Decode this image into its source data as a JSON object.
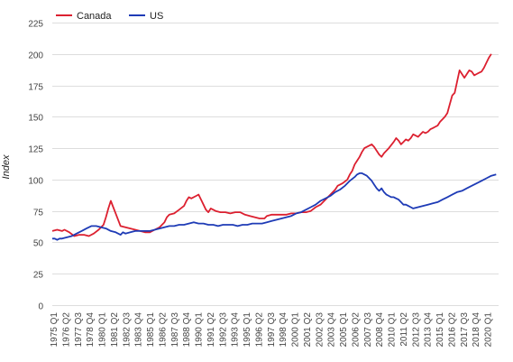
{
  "chart_data": {
    "type": "line",
    "title": "",
    "xlabel": "",
    "ylabel": "Index",
    "ylim": [
      0,
      225
    ],
    "y_ticks": [
      0,
      25,
      50,
      75,
      100,
      125,
      150,
      175,
      200,
      225
    ],
    "grid": true,
    "legend_position": "top-left",
    "x_tick_labels": [
      "1975 Q1",
      "1976 Q2",
      "1977 Q3",
      "1978 Q4",
      "1980 Q1",
      "1981 Q2",
      "1982 Q3",
      "1983 Q4",
      "1985 Q1",
      "1986 Q2",
      "1987 Q3",
      "1988 Q4",
      "1990 Q1",
      "1991 Q2",
      "1992 Q3",
      "1993 Q4",
      "1995 Q1",
      "1996 Q2",
      "1997 Q3",
      "1998 Q4",
      "2000 Q1",
      "2001 Q2",
      "2002 Q3",
      "2003 Q4",
      "2005 Q1",
      "2006 Q2",
      "2007 Q3",
      "2008 Q4",
      "2010 Q1",
      "2011 Q2",
      "2012 Q3",
      "2013 Q4",
      "2015 Q1",
      "2016 Q2",
      "2017 Q3",
      "2018 Q4",
      "2020 Q1"
    ],
    "x_start_year": 1975,
    "x_end_year": 2020.75,
    "series": [
      {
        "name": "Canada",
        "color": "#dc2030",
        "points": [
          [
            1975.0,
            59
          ],
          [
            1975.5,
            60
          ],
          [
            1976.0,
            59
          ],
          [
            1976.25,
            60
          ],
          [
            1976.75,
            58
          ],
          [
            1977.25,
            55
          ],
          [
            1977.75,
            56
          ],
          [
            1978.25,
            56
          ],
          [
            1978.75,
            55
          ],
          [
            1979.25,
            57
          ],
          [
            1979.75,
            60
          ],
          [
            1980.25,
            64
          ],
          [
            1980.5,
            70
          ],
          [
            1980.75,
            77
          ],
          [
            1981.0,
            83
          ],
          [
            1981.25,
            78
          ],
          [
            1981.5,
            73
          ],
          [
            1981.75,
            68
          ],
          [
            1982.0,
            63
          ],
          [
            1982.5,
            62
          ],
          [
            1983.0,
            61
          ],
          [
            1983.5,
            60
          ],
          [
            1984.0,
            59
          ],
          [
            1984.5,
            58
          ],
          [
            1985.0,
            58
          ],
          [
            1985.5,
            60
          ],
          [
            1986.0,
            62
          ],
          [
            1986.5,
            66
          ],
          [
            1986.75,
            70
          ],
          [
            1987.0,
            72
          ],
          [
            1987.5,
            73
          ],
          [
            1988.0,
            76
          ],
          [
            1988.5,
            79
          ],
          [
            1988.75,
            83
          ],
          [
            1989.0,
            86
          ],
          [
            1989.25,
            85
          ],
          [
            1989.75,
            87
          ],
          [
            1990.0,
            88
          ],
          [
            1990.25,
            84
          ],
          [
            1990.5,
            80
          ],
          [
            1990.75,
            76
          ],
          [
            1991.0,
            74
          ],
          [
            1991.25,
            77
          ],
          [
            1991.75,
            75
          ],
          [
            1992.25,
            74
          ],
          [
            1992.75,
            74
          ],
          [
            1993.25,
            73
          ],
          [
            1993.75,
            74
          ],
          [
            1994.25,
            74
          ],
          [
            1994.75,
            72
          ],
          [
            1995.25,
            71
          ],
          [
            1995.75,
            70
          ],
          [
            1996.25,
            69
          ],
          [
            1996.75,
            69
          ],
          [
            1997.0,
            71
          ],
          [
            1997.5,
            72
          ],
          [
            1998.0,
            72
          ],
          [
            1998.5,
            72
          ],
          [
            1999.0,
            72
          ],
          [
            1999.5,
            73
          ],
          [
            2000.0,
            73
          ],
          [
            2000.5,
            74
          ],
          [
            2001.0,
            74
          ],
          [
            2001.5,
            75
          ],
          [
            2002.0,
            78
          ],
          [
            2002.5,
            80
          ],
          [
            2003.0,
            84
          ],
          [
            2003.5,
            88
          ],
          [
            2004.0,
            92
          ],
          [
            2004.25,
            95
          ],
          [
            2004.75,
            97
          ],
          [
            2005.25,
            100
          ],
          [
            2005.5,
            104
          ],
          [
            2005.75,
            107
          ],
          [
            2006.0,
            112
          ],
          [
            2006.25,
            115
          ],
          [
            2006.5,
            118
          ],
          [
            2006.75,
            122
          ],
          [
            2007.0,
            125
          ],
          [
            2007.25,
            126
          ],
          [
            2007.5,
            127
          ],
          [
            2007.75,
            128
          ],
          [
            2008.0,
            126
          ],
          [
            2008.5,
            120
          ],
          [
            2008.75,
            118
          ],
          [
            2009.0,
            121
          ],
          [
            2009.5,
            125
          ],
          [
            2010.0,
            130
          ],
          [
            2010.25,
            133
          ],
          [
            2010.5,
            131
          ],
          [
            2010.75,
            128
          ],
          [
            2011.0,
            130
          ],
          [
            2011.25,
            132
          ],
          [
            2011.5,
            131
          ],
          [
            2011.75,
            133
          ],
          [
            2012.0,
            136
          ],
          [
            2012.25,
            135
          ],
          [
            2012.5,
            134
          ],
          [
            2012.75,
            136
          ],
          [
            2013.0,
            138
          ],
          [
            2013.25,
            137
          ],
          [
            2013.5,
            138
          ],
          [
            2013.75,
            140
          ],
          [
            2014.0,
            141
          ],
          [
            2014.25,
            142
          ],
          [
            2014.5,
            143
          ],
          [
            2014.75,
            146
          ],
          [
            2015.0,
            148
          ],
          [
            2015.25,
            150
          ],
          [
            2015.5,
            153
          ],
          [
            2015.75,
            160
          ],
          [
            2016.0,
            167
          ],
          [
            2016.25,
            169
          ],
          [
            2016.5,
            178
          ],
          [
            2016.75,
            187
          ],
          [
            2017.0,
            184
          ],
          [
            2017.25,
            181
          ],
          [
            2017.5,
            184
          ],
          [
            2017.75,
            187
          ],
          [
            2018.0,
            186
          ],
          [
            2018.25,
            183
          ],
          [
            2018.5,
            184
          ],
          [
            2018.75,
            185
          ],
          [
            2019.0,
            186
          ],
          [
            2019.25,
            189
          ],
          [
            2019.5,
            193
          ],
          [
            2019.75,
            197
          ],
          [
            2020.0,
            200
          ]
        ]
      },
      {
        "name": "US",
        "color": "#1e3bb6",
        "points": [
          [
            1975.0,
            53
          ],
          [
            1975.25,
            53
          ],
          [
            1975.5,
            52
          ],
          [
            1975.75,
            53
          ],
          [
            1976.0,
            53
          ],
          [
            1976.5,
            54
          ],
          [
            1977.0,
            55
          ],
          [
            1977.5,
            57
          ],
          [
            1978.0,
            59
          ],
          [
            1978.5,
            61
          ],
          [
            1979.0,
            63
          ],
          [
            1979.5,
            63
          ],
          [
            1980.0,
            62
          ],
          [
            1980.5,
            61
          ],
          [
            1981.0,
            59
          ],
          [
            1981.5,
            58
          ],
          [
            1981.75,
            57
          ],
          [
            1982.0,
            56
          ],
          [
            1982.25,
            58
          ],
          [
            1982.5,
            57
          ],
          [
            1983.0,
            58
          ],
          [
            1983.5,
            59
          ],
          [
            1984.0,
            59
          ],
          [
            1984.5,
            59
          ],
          [
            1985.0,
            59
          ],
          [
            1985.5,
            60
          ],
          [
            1986.0,
            61
          ],
          [
            1986.5,
            62
          ],
          [
            1987.0,
            63
          ],
          [
            1987.5,
            63
          ],
          [
            1988.0,
            64
          ],
          [
            1988.5,
            64
          ],
          [
            1989.0,
            65
          ],
          [
            1989.5,
            66
          ],
          [
            1990.0,
            65
          ],
          [
            1990.5,
            65
          ],
          [
            1991.0,
            64
          ],
          [
            1991.5,
            64
          ],
          [
            1992.0,
            63
          ],
          [
            1992.5,
            64
          ],
          [
            1993.0,
            64
          ],
          [
            1993.5,
            64
          ],
          [
            1994.0,
            63
          ],
          [
            1994.5,
            64
          ],
          [
            1995.0,
            64
          ],
          [
            1995.5,
            65
          ],
          [
            1996.0,
            65
          ],
          [
            1996.5,
            65
          ],
          [
            1997.0,
            66
          ],
          [
            1997.5,
            67
          ],
          [
            1998.0,
            68
          ],
          [
            1998.5,
            69
          ],
          [
            1999.0,
            70
          ],
          [
            1999.5,
            71
          ],
          [
            2000.0,
            73
          ],
          [
            2000.5,
            74
          ],
          [
            2001.0,
            76
          ],
          [
            2001.5,
            78
          ],
          [
            2002.0,
            80
          ],
          [
            2002.5,
            83
          ],
          [
            2003.0,
            85
          ],
          [
            2003.5,
            87
          ],
          [
            2004.0,
            90
          ],
          [
            2004.5,
            92
          ],
          [
            2005.0,
            95
          ],
          [
            2005.5,
            99
          ],
          [
            2006.0,
            102
          ],
          [
            2006.25,
            104
          ],
          [
            2006.5,
            105
          ],
          [
            2006.75,
            105
          ],
          [
            2007.0,
            104
          ],
          [
            2007.25,
            103
          ],
          [
            2007.5,
            101
          ],
          [
            2007.75,
            99
          ],
          [
            2008.0,
            96
          ],
          [
            2008.25,
            93
          ],
          [
            2008.5,
            91
          ],
          [
            2008.75,
            93
          ],
          [
            2009.0,
            90
          ],
          [
            2009.25,
            88
          ],
          [
            2009.5,
            87
          ],
          [
            2009.75,
            86
          ],
          [
            2010.0,
            86
          ],
          [
            2010.25,
            85
          ],
          [
            2010.5,
            84
          ],
          [
            2010.75,
            82
          ],
          [
            2011.0,
            80
          ],
          [
            2011.25,
            80
          ],
          [
            2011.5,
            79
          ],
          [
            2011.75,
            78
          ],
          [
            2012.0,
            77
          ],
          [
            2012.5,
            78
          ],
          [
            2013.0,
            79
          ],
          [
            2013.5,
            80
          ],
          [
            2014.0,
            81
          ],
          [
            2014.5,
            82
          ],
          [
            2015.0,
            84
          ],
          [
            2015.5,
            86
          ],
          [
            2016.0,
            88
          ],
          [
            2016.5,
            90
          ],
          [
            2017.0,
            91
          ],
          [
            2017.5,
            93
          ],
          [
            2018.0,
            95
          ],
          [
            2018.5,
            97
          ],
          [
            2019.0,
            99
          ],
          [
            2019.5,
            101
          ],
          [
            2020.0,
            103
          ],
          [
            2020.5,
            104
          ]
        ]
      }
    ]
  }
}
